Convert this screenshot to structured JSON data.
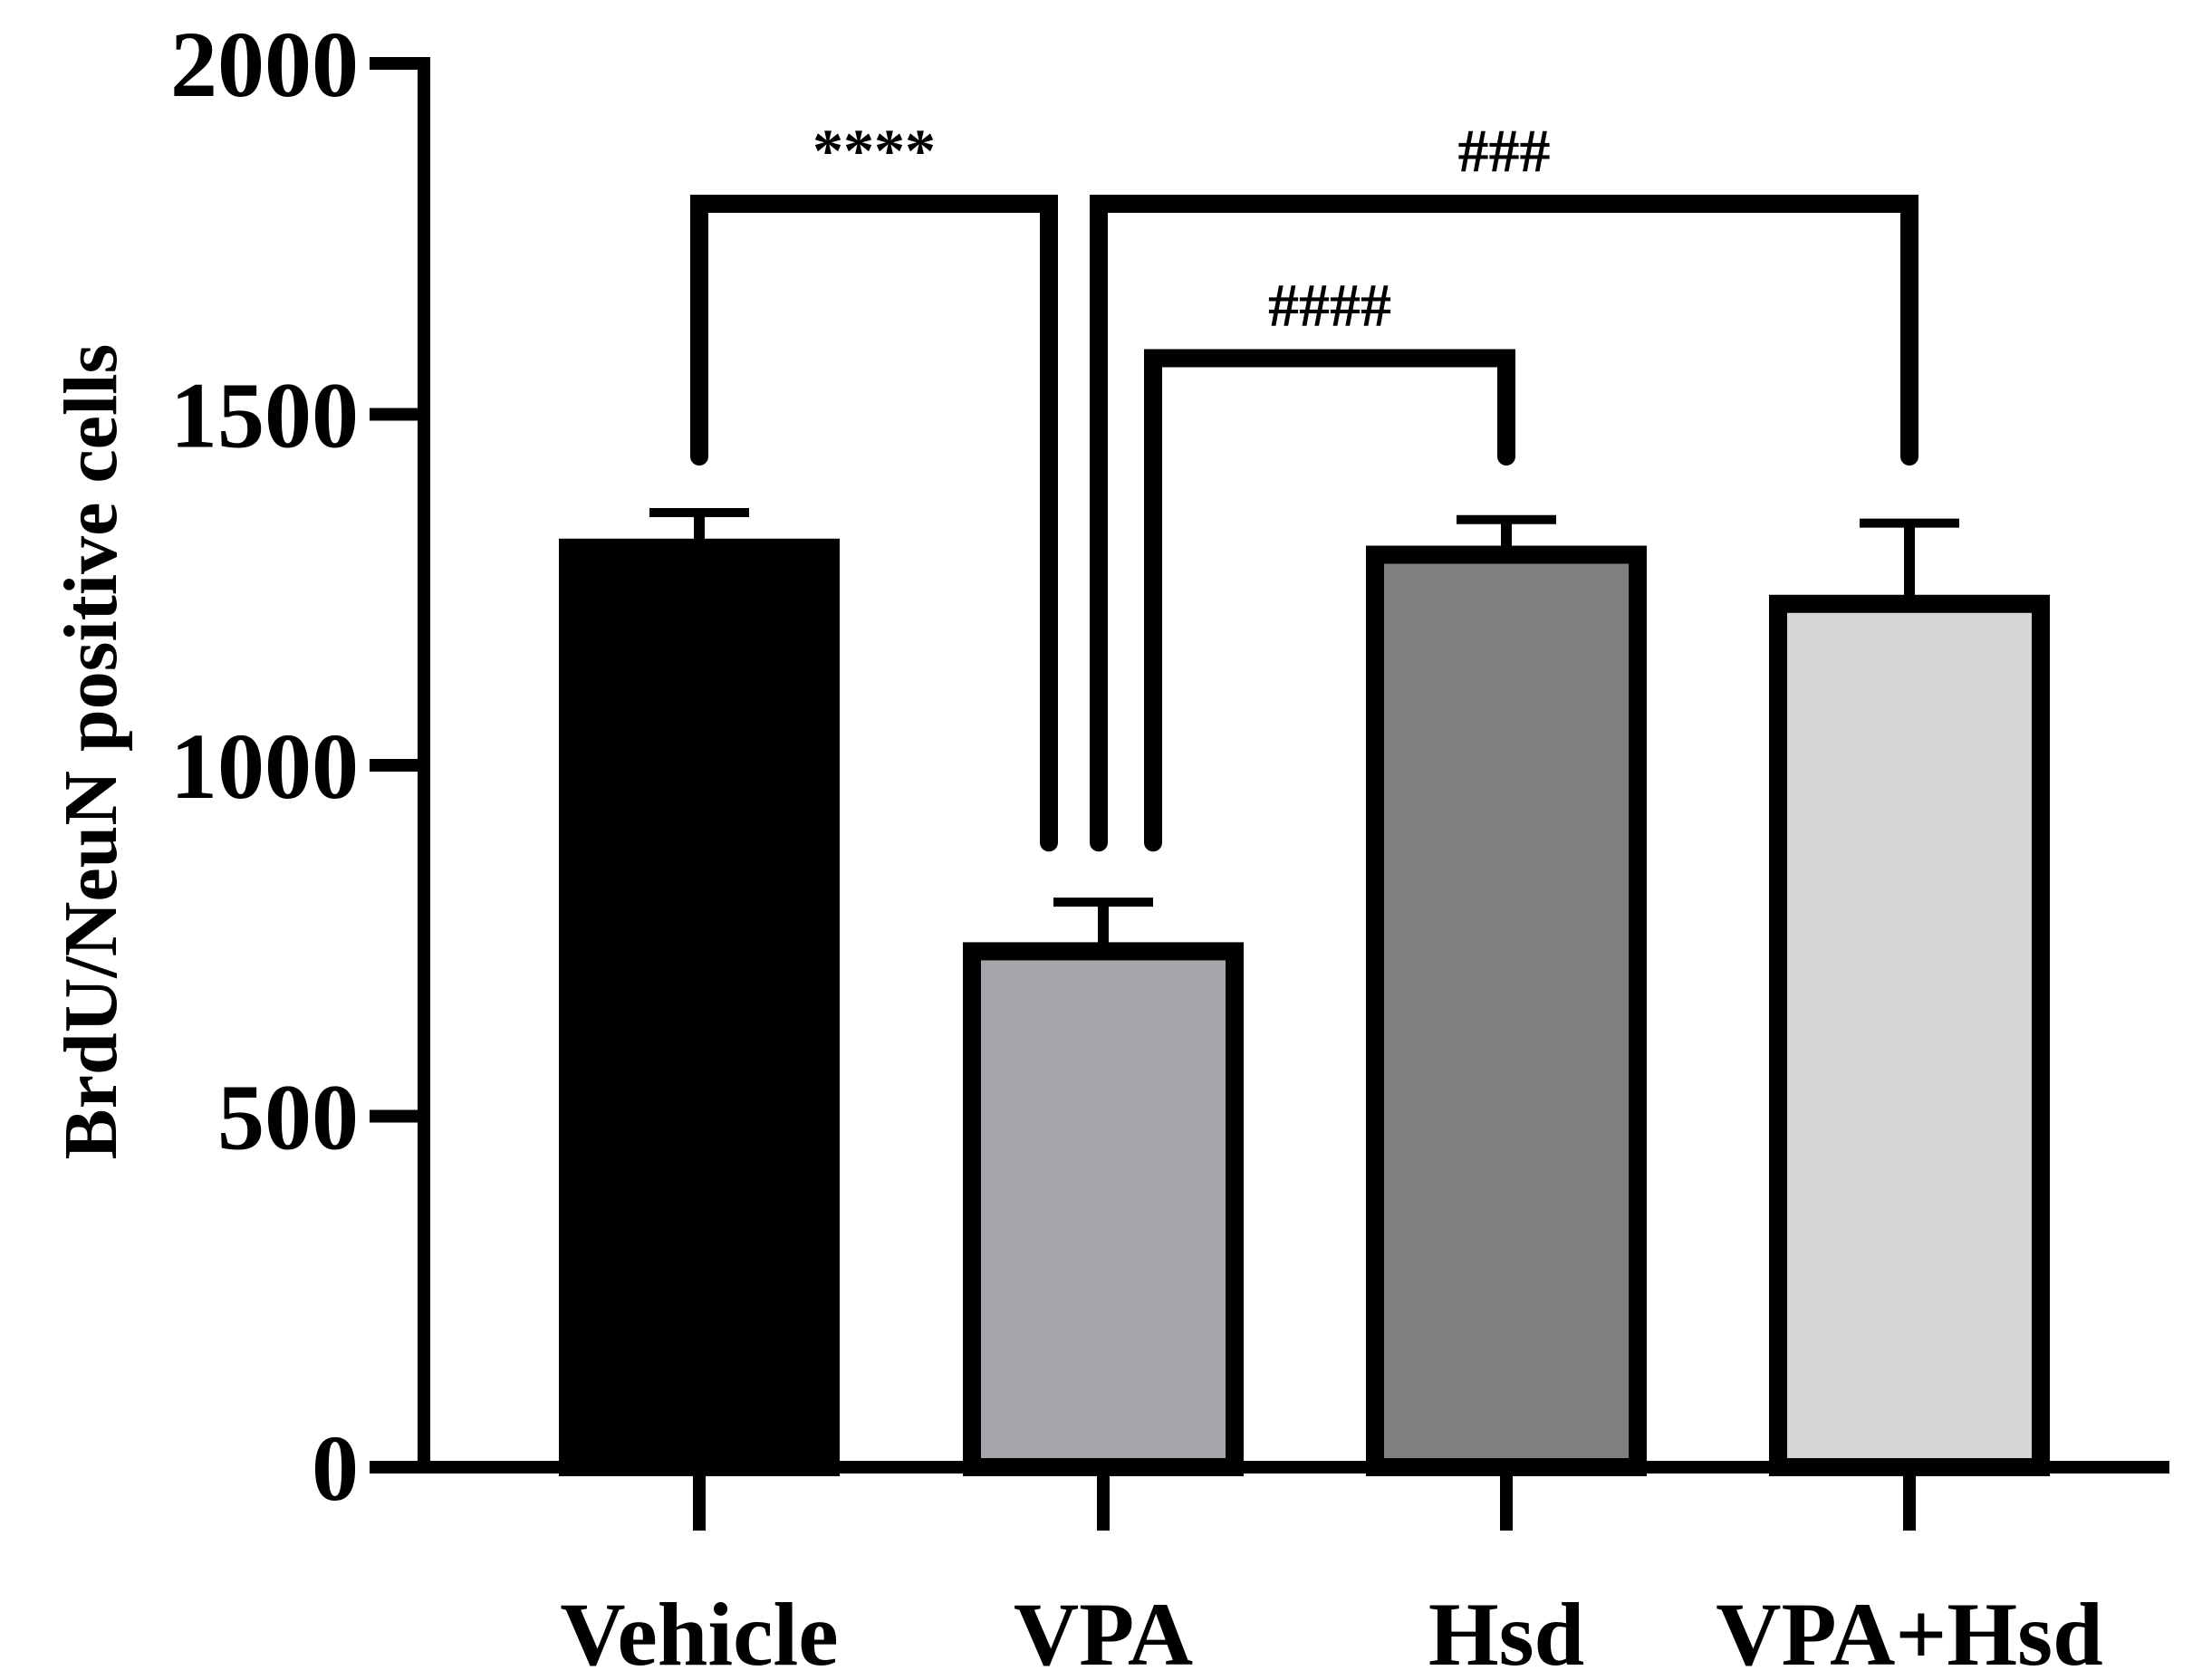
{
  "chart_data": {
    "type": "bar",
    "title": "",
    "xlabel": "",
    "ylabel": "BrdU/NeuN positive cells",
    "ylim": [
      0,
      2000
    ],
    "yticks": [
      0,
      500,
      1000,
      1500,
      2000
    ],
    "ytick_labels": [
      "0",
      "500",
      "1000",
      "1500",
      "2000"
    ],
    "categories": [
      "Vehicle",
      "VPA",
      "Hsd",
      "VPA+Hsd"
    ],
    "values": [
      1310,
      735,
      1300,
      1230
    ],
    "errors": [
      50,
      70,
      50,
      115
    ],
    "colors": [
      "#000000",
      "#a5a4a9",
      "#808080",
      "#d6d6d6"
    ],
    "grid": false,
    "legend": "none",
    "significance": [
      {
        "from": 0,
        "to": 1,
        "label": "****",
        "level": 1800,
        "drop_from": 1440,
        "drop_to": 890
      },
      {
        "from": 1,
        "to": 3,
        "label": "###",
        "level": 1800,
        "drop_from": 890,
        "drop_to": 1440
      },
      {
        "from": 1,
        "to": 2,
        "label": "####",
        "level": 1580,
        "drop_from": 890,
        "drop_to": 1440
      }
    ]
  }
}
